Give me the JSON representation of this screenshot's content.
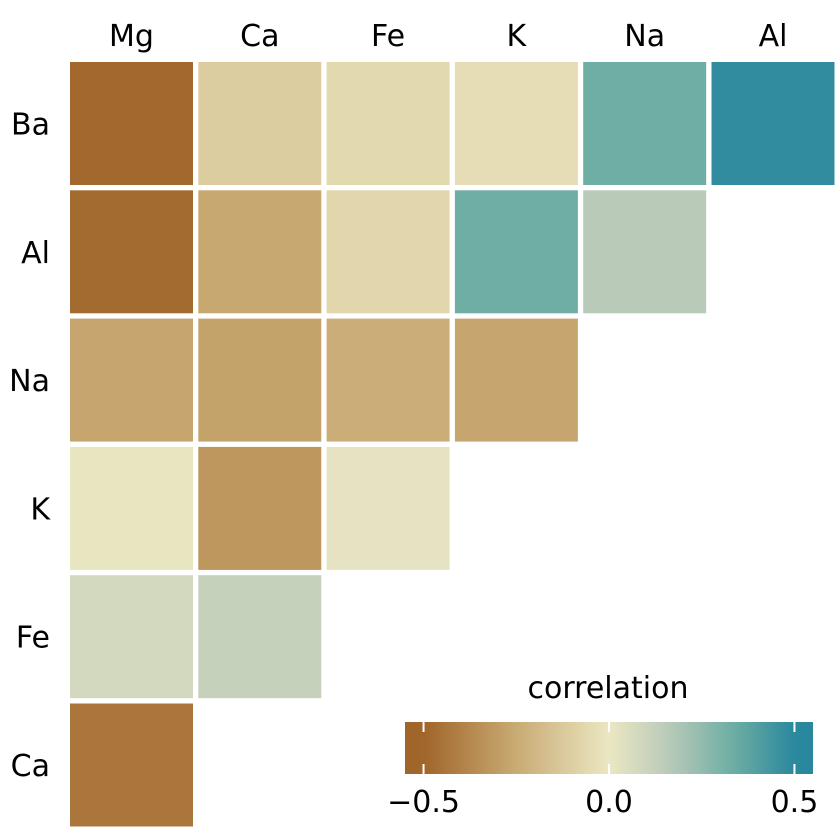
{
  "chart_data": {
    "type": "heatmap",
    "title": "",
    "columns": [
      "Mg",
      "Ca",
      "Fe",
      "K",
      "Na",
      "Al"
    ],
    "rows": [
      "Ba",
      "Al",
      "Na",
      "K",
      "Fe",
      "Ca"
    ],
    "values": [
      [
        -0.49,
        -0.11,
        -0.06,
        -0.04,
        0.33,
        0.48
      ],
      [
        -0.48,
        -0.26,
        -0.07,
        0.33,
        0.16,
        null
      ],
      [
        -0.27,
        -0.28,
        -0.24,
        -0.27,
        null,
        null
      ],
      [
        0.01,
        -0.32,
        0.02,
        null,
        null,
        null
      ],
      [
        0.08,
        0.12,
        null,
        null,
        null,
        null
      ],
      [
        -0.44,
        null,
        null,
        null,
        null,
        null
      ]
    ],
    "legend": {
      "title": "correlation",
      "range": [
        -0.55,
        0.55
      ],
      "ticks": [
        -0.5,
        0.0,
        0.5
      ],
      "tick_labels": [
        "−0.5",
        "0.0",
        "0.5"
      ],
      "placement": "bottom-right"
    },
    "colors": {
      "low": "#A0652A",
      "mid_low": "#C9AB74",
      "mid": "#EBE7C2",
      "mid_high": "#BDCCBA",
      "high_mid": "#6FAEA4",
      "high": "#2A889E"
    }
  }
}
